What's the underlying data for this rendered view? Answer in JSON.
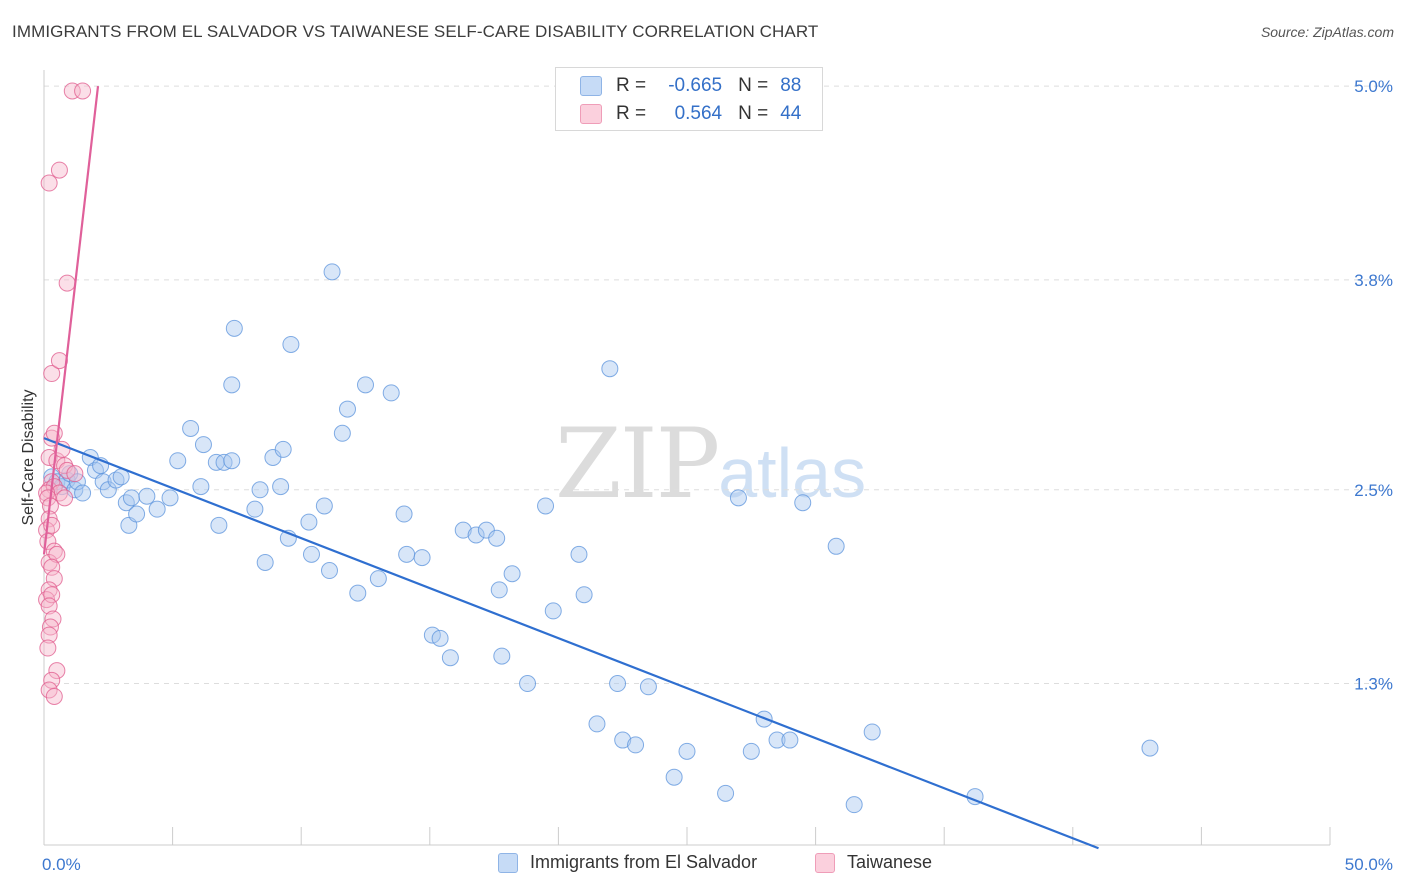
{
  "title": "IMMIGRANTS FROM EL SALVADOR VS TAIWANESE SELF-CARE DISABILITY CORRELATION CHART",
  "source": "Source: ZipAtlas.com",
  "watermark": {
    "zip": "ZIP",
    "atlas": "atlas"
  },
  "legend": {
    "rows": [
      {
        "r_label": "R =",
        "r_value": "-0.665",
        "n_label": "N =",
        "n_value": "88",
        "color": "#a9c8f0"
      },
      {
        "r_label": "R =",
        "r_value": "0.564",
        "n_label": "N =",
        "n_value": "44",
        "color": "#f7b8cb"
      }
    ]
  },
  "chart_data": {
    "type": "scatter",
    "title": "IMMIGRANTS FROM EL SALVADOR VS TAIWANESE SELF-CARE DISABILITY CORRELATION CHART",
    "xlabel": "",
    "ylabel": "Self-Care Disability",
    "xlim": [
      0,
      50
    ],
    "ylim": [
      0.3,
      5.1
    ],
    "x_tick_labels": [
      "0.0%",
      "50.0%"
    ],
    "y_ticks": [
      1.3,
      2.5,
      3.8,
      5.0
    ],
    "y_tick_labels": [
      "1.3%",
      "2.5%",
      "3.8%",
      "5.0%"
    ],
    "grid": true,
    "series": [
      {
        "name": "Immigrants from El Salvador",
        "color": "#5b93dc",
        "fill": "#a9c8f0",
        "trend": {
          "x": [
            0,
            41
          ],
          "y": [
            2.82,
            0.28
          ]
        },
        "points": [
          [
            0.3,
            2.58
          ],
          [
            0.5,
            2.55
          ],
          [
            0.7,
            2.52
          ],
          [
            0.9,
            2.56
          ],
          [
            1.0,
            2.6
          ],
          [
            1.2,
            2.5
          ],
          [
            1.3,
            2.55
          ],
          [
            1.5,
            2.48
          ],
          [
            1.8,
            2.7
          ],
          [
            2.0,
            2.62
          ],
          [
            2.2,
            2.65
          ],
          [
            2.3,
            2.55
          ],
          [
            2.5,
            2.5
          ],
          [
            2.8,
            2.56
          ],
          [
            3.3,
            2.28
          ],
          [
            3.0,
            2.58
          ],
          [
            3.2,
            2.42
          ],
          [
            3.6,
            2.35
          ],
          [
            3.4,
            2.45
          ],
          [
            4.0,
            2.46
          ],
          [
            4.4,
            2.38
          ],
          [
            4.9,
            2.45
          ],
          [
            5.2,
            2.68
          ],
          [
            5.7,
            2.88
          ],
          [
            6.2,
            2.78
          ],
          [
            6.1,
            2.52
          ],
          [
            6.7,
            2.67
          ],
          [
            7.0,
            2.67
          ],
          [
            7.3,
            2.68
          ],
          [
            6.8,
            2.28
          ],
          [
            8.2,
            2.38
          ],
          [
            8.4,
            2.5
          ],
          [
            8.9,
            2.7
          ],
          [
            9.2,
            2.52
          ],
          [
            9.3,
            2.75
          ],
          [
            8.6,
            2.05
          ],
          [
            9.5,
            2.2
          ],
          [
            7.3,
            3.15
          ],
          [
            7.4,
            3.5
          ],
          [
            9.6,
            3.4
          ],
          [
            10.3,
            2.3
          ],
          [
            10.4,
            2.1
          ],
          [
            10.9,
            2.4
          ],
          [
            11.1,
            2.0
          ],
          [
            11.8,
            3.0
          ],
          [
            11.2,
            3.85
          ],
          [
            11.6,
            2.85
          ],
          [
            12.2,
            1.86
          ],
          [
            12.5,
            3.15
          ],
          [
            13.0,
            1.95
          ],
          [
            13.5,
            3.1
          ],
          [
            14.0,
            2.35
          ],
          [
            14.1,
            2.1
          ],
          [
            14.7,
            2.08
          ],
          [
            15.1,
            1.6
          ],
          [
            15.4,
            1.58
          ],
          [
            15.8,
            1.46
          ],
          [
            16.3,
            2.25
          ],
          [
            16.8,
            2.22
          ],
          [
            17.2,
            2.25
          ],
          [
            17.6,
            2.2
          ],
          [
            17.7,
            1.88
          ],
          [
            17.8,
            1.47
          ],
          [
            18.2,
            1.98
          ],
          [
            18.8,
            1.3
          ],
          [
            19.5,
            2.4
          ],
          [
            19.8,
            1.75
          ],
          [
            20.8,
            2.1
          ],
          [
            21.0,
            1.85
          ],
          [
            21.5,
            1.05
          ],
          [
            22.0,
            3.25
          ],
          [
            22.3,
            1.3
          ],
          [
            22.5,
            0.95
          ],
          [
            23.0,
            0.92
          ],
          [
            23.5,
            1.28
          ],
          [
            24.5,
            0.72
          ],
          [
            25.0,
            0.88
          ],
          [
            26.5,
            0.62
          ],
          [
            27.0,
            2.45
          ],
          [
            28.0,
            1.08
          ],
          [
            28.5,
            0.95
          ],
          [
            29.0,
            0.95
          ],
          [
            29.5,
            2.42
          ],
          [
            27.5,
            0.88
          ],
          [
            30.8,
            2.15
          ],
          [
            31.5,
            0.55
          ],
          [
            32.2,
            1.0
          ],
          [
            36.2,
            0.6
          ],
          [
            43.0,
            0.9
          ]
        ]
      },
      {
        "name": "Taiwanese",
        "color": "#e05a8c",
        "fill": "#f7b8cb",
        "trend": {
          "x": [
            0,
            2.1
          ],
          "y": [
            2.1,
            5.0
          ]
        },
        "points": [
          [
            1.1,
            4.97
          ],
          [
            1.5,
            4.97
          ],
          [
            0.2,
            4.4
          ],
          [
            0.6,
            4.48
          ],
          [
            0.9,
            3.78
          ],
          [
            0.3,
            3.22
          ],
          [
            0.6,
            3.3
          ],
          [
            0.3,
            2.82
          ],
          [
            0.4,
            2.85
          ],
          [
            0.2,
            2.7
          ],
          [
            0.5,
            2.68
          ],
          [
            0.7,
            2.75
          ],
          [
            0.8,
            2.65
          ],
          [
            0.9,
            2.62
          ],
          [
            0.3,
            2.55
          ],
          [
            0.2,
            2.5
          ],
          [
            0.4,
            2.52
          ],
          [
            0.6,
            2.48
          ],
          [
            0.8,
            2.45
          ],
          [
            1.2,
            2.6
          ],
          [
            0.1,
            2.48
          ],
          [
            0.15,
            2.45
          ],
          [
            0.25,
            2.4
          ],
          [
            0.2,
            2.32
          ],
          [
            0.1,
            2.25
          ],
          [
            0.3,
            2.28
          ],
          [
            0.15,
            2.18
          ],
          [
            0.4,
            2.12
          ],
          [
            0.2,
            2.05
          ],
          [
            0.5,
            2.1
          ],
          [
            0.3,
            2.02
          ],
          [
            0.4,
            1.95
          ],
          [
            0.2,
            1.88
          ],
          [
            0.1,
            1.82
          ],
          [
            0.3,
            1.85
          ],
          [
            0.2,
            1.78
          ],
          [
            0.35,
            1.7
          ],
          [
            0.25,
            1.65
          ],
          [
            0.2,
            1.6
          ],
          [
            0.15,
            1.52
          ],
          [
            0.5,
            1.38
          ],
          [
            0.3,
            1.32
          ],
          [
            0.2,
            1.26
          ],
          [
            0.4,
            1.22
          ]
        ]
      }
    ]
  },
  "bottom_legend": [
    {
      "label": "Immigrants from El Salvador",
      "color": "#a9c8f0"
    },
    {
      "label": "Taiwanese",
      "color": "#f7b8cb"
    }
  ]
}
